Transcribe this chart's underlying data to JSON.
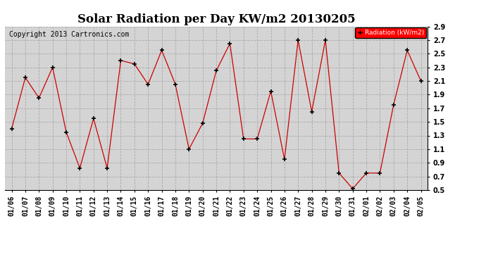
{
  "title": "Solar Radiation per Day KW/m2 20130205",
  "copyright_text": "Copyright 2013 Cartronics.com",
  "legend_label": "Radiation (kW/m2)",
  "dates": [
    "01/06",
    "01/07",
    "01/08",
    "01/09",
    "01/10",
    "01/11",
    "01/12",
    "01/13",
    "01/14",
    "01/15",
    "01/16",
    "01/17",
    "01/18",
    "01/19",
    "01/20",
    "01/21",
    "01/22",
    "01/23",
    "01/24",
    "01/25",
    "01/26",
    "01/27",
    "01/28",
    "01/29",
    "01/30",
    "01/31",
    "02/01",
    "02/02",
    "02/03",
    "02/04",
    "02/05"
  ],
  "values": [
    1.4,
    2.15,
    1.85,
    2.3,
    1.35,
    0.82,
    1.55,
    0.82,
    2.4,
    2.35,
    2.05,
    2.55,
    2.05,
    1.1,
    1.48,
    2.25,
    2.65,
    1.25,
    1.25,
    1.95,
    0.95,
    2.7,
    1.65,
    2.7,
    0.75,
    0.52,
    0.75,
    0.75,
    1.75,
    2.55,
    2.1
  ],
  "ylim": [
    0.5,
    2.9
  ],
  "yticks": [
    0.5,
    0.7,
    0.9,
    1.1,
    1.3,
    1.5,
    1.7,
    1.9,
    2.1,
    2.3,
    2.5,
    2.7,
    2.9
  ],
  "line_color": "#cc0000",
  "marker_color": "black",
  "marker_style": "+",
  "marker_size": 4,
  "grid_color": "#aaaaaa",
  "grid_style": "--",
  "background_color": "#ffffff",
  "plot_bg_color": "#d4d4d4",
  "title_fontsize": 12,
  "axis_fontsize": 7,
  "copyright_fontsize": 7,
  "legend_bg": "red",
  "legend_text_color": "white"
}
